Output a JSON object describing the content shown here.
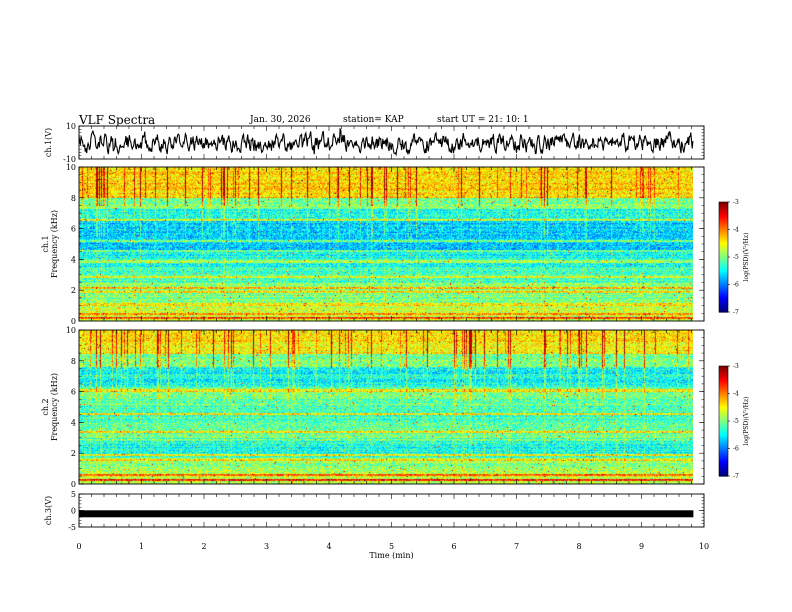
{
  "header": {
    "title": "VLF Spectra",
    "date": "Jan. 30, 2026",
    "station": "station= KAP",
    "start": "start UT =  21: 10: 1"
  },
  "chart_data": [
    {
      "type": "line",
      "ylabel": "ch.1(V)",
      "ylim": [
        -10,
        10
      ],
      "y_ticks": [
        "10",
        "-10"
      ],
      "xlim": [
        0,
        10
      ],
      "data_extent": [
        0,
        9.83
      ],
      "noise": "random waveform roughly between -8 and 8"
    },
    {
      "type": "heatmap",
      "ylabel_lines": [
        "ch.1",
        "Frequency (kHz)"
      ],
      "ylim": [
        0,
        10
      ],
      "y_ticks": [
        "0",
        "2",
        "4",
        "6",
        "8",
        "10"
      ],
      "xlim": [
        0,
        10
      ],
      "data_extent": [
        0,
        9.83
      ],
      "colorbar": {
        "label": "log(PSD)(V²/Hz)",
        "range": [
          -7,
          -3
        ],
        "ticks": [
          "-3",
          "-4",
          "-5",
          "-6",
          "-7"
        ]
      }
    },
    {
      "type": "heatmap",
      "ylabel_lines": [
        "ch.2",
        "Frequency (kHz)"
      ],
      "ylim": [
        0,
        10
      ],
      "y_ticks": [
        "0",
        "2",
        "4",
        "6",
        "8",
        "10"
      ],
      "xlim": [
        0,
        10
      ],
      "data_extent": [
        0,
        9.83
      ],
      "colorbar": {
        "label": "log(PSD)(V²/Hz)",
        "range": [
          -7,
          -3
        ],
        "ticks": [
          "-3",
          "-4",
          "-5",
          "-6",
          "-7"
        ]
      }
    },
    {
      "type": "line",
      "ylabel": "ch.3(V)",
      "ylim": [
        -5,
        5
      ],
      "y_ticks": [
        "5",
        "0",
        "-5"
      ],
      "xlim": [
        0,
        10
      ],
      "data_extent": [
        0,
        9.83
      ],
      "value": -1
    }
  ],
  "x_axis": {
    "label": "Time (min)",
    "ticks": [
      "0",
      "1",
      "2",
      "3",
      "4",
      "5",
      "6",
      "7",
      "8",
      "9",
      "10"
    ]
  }
}
